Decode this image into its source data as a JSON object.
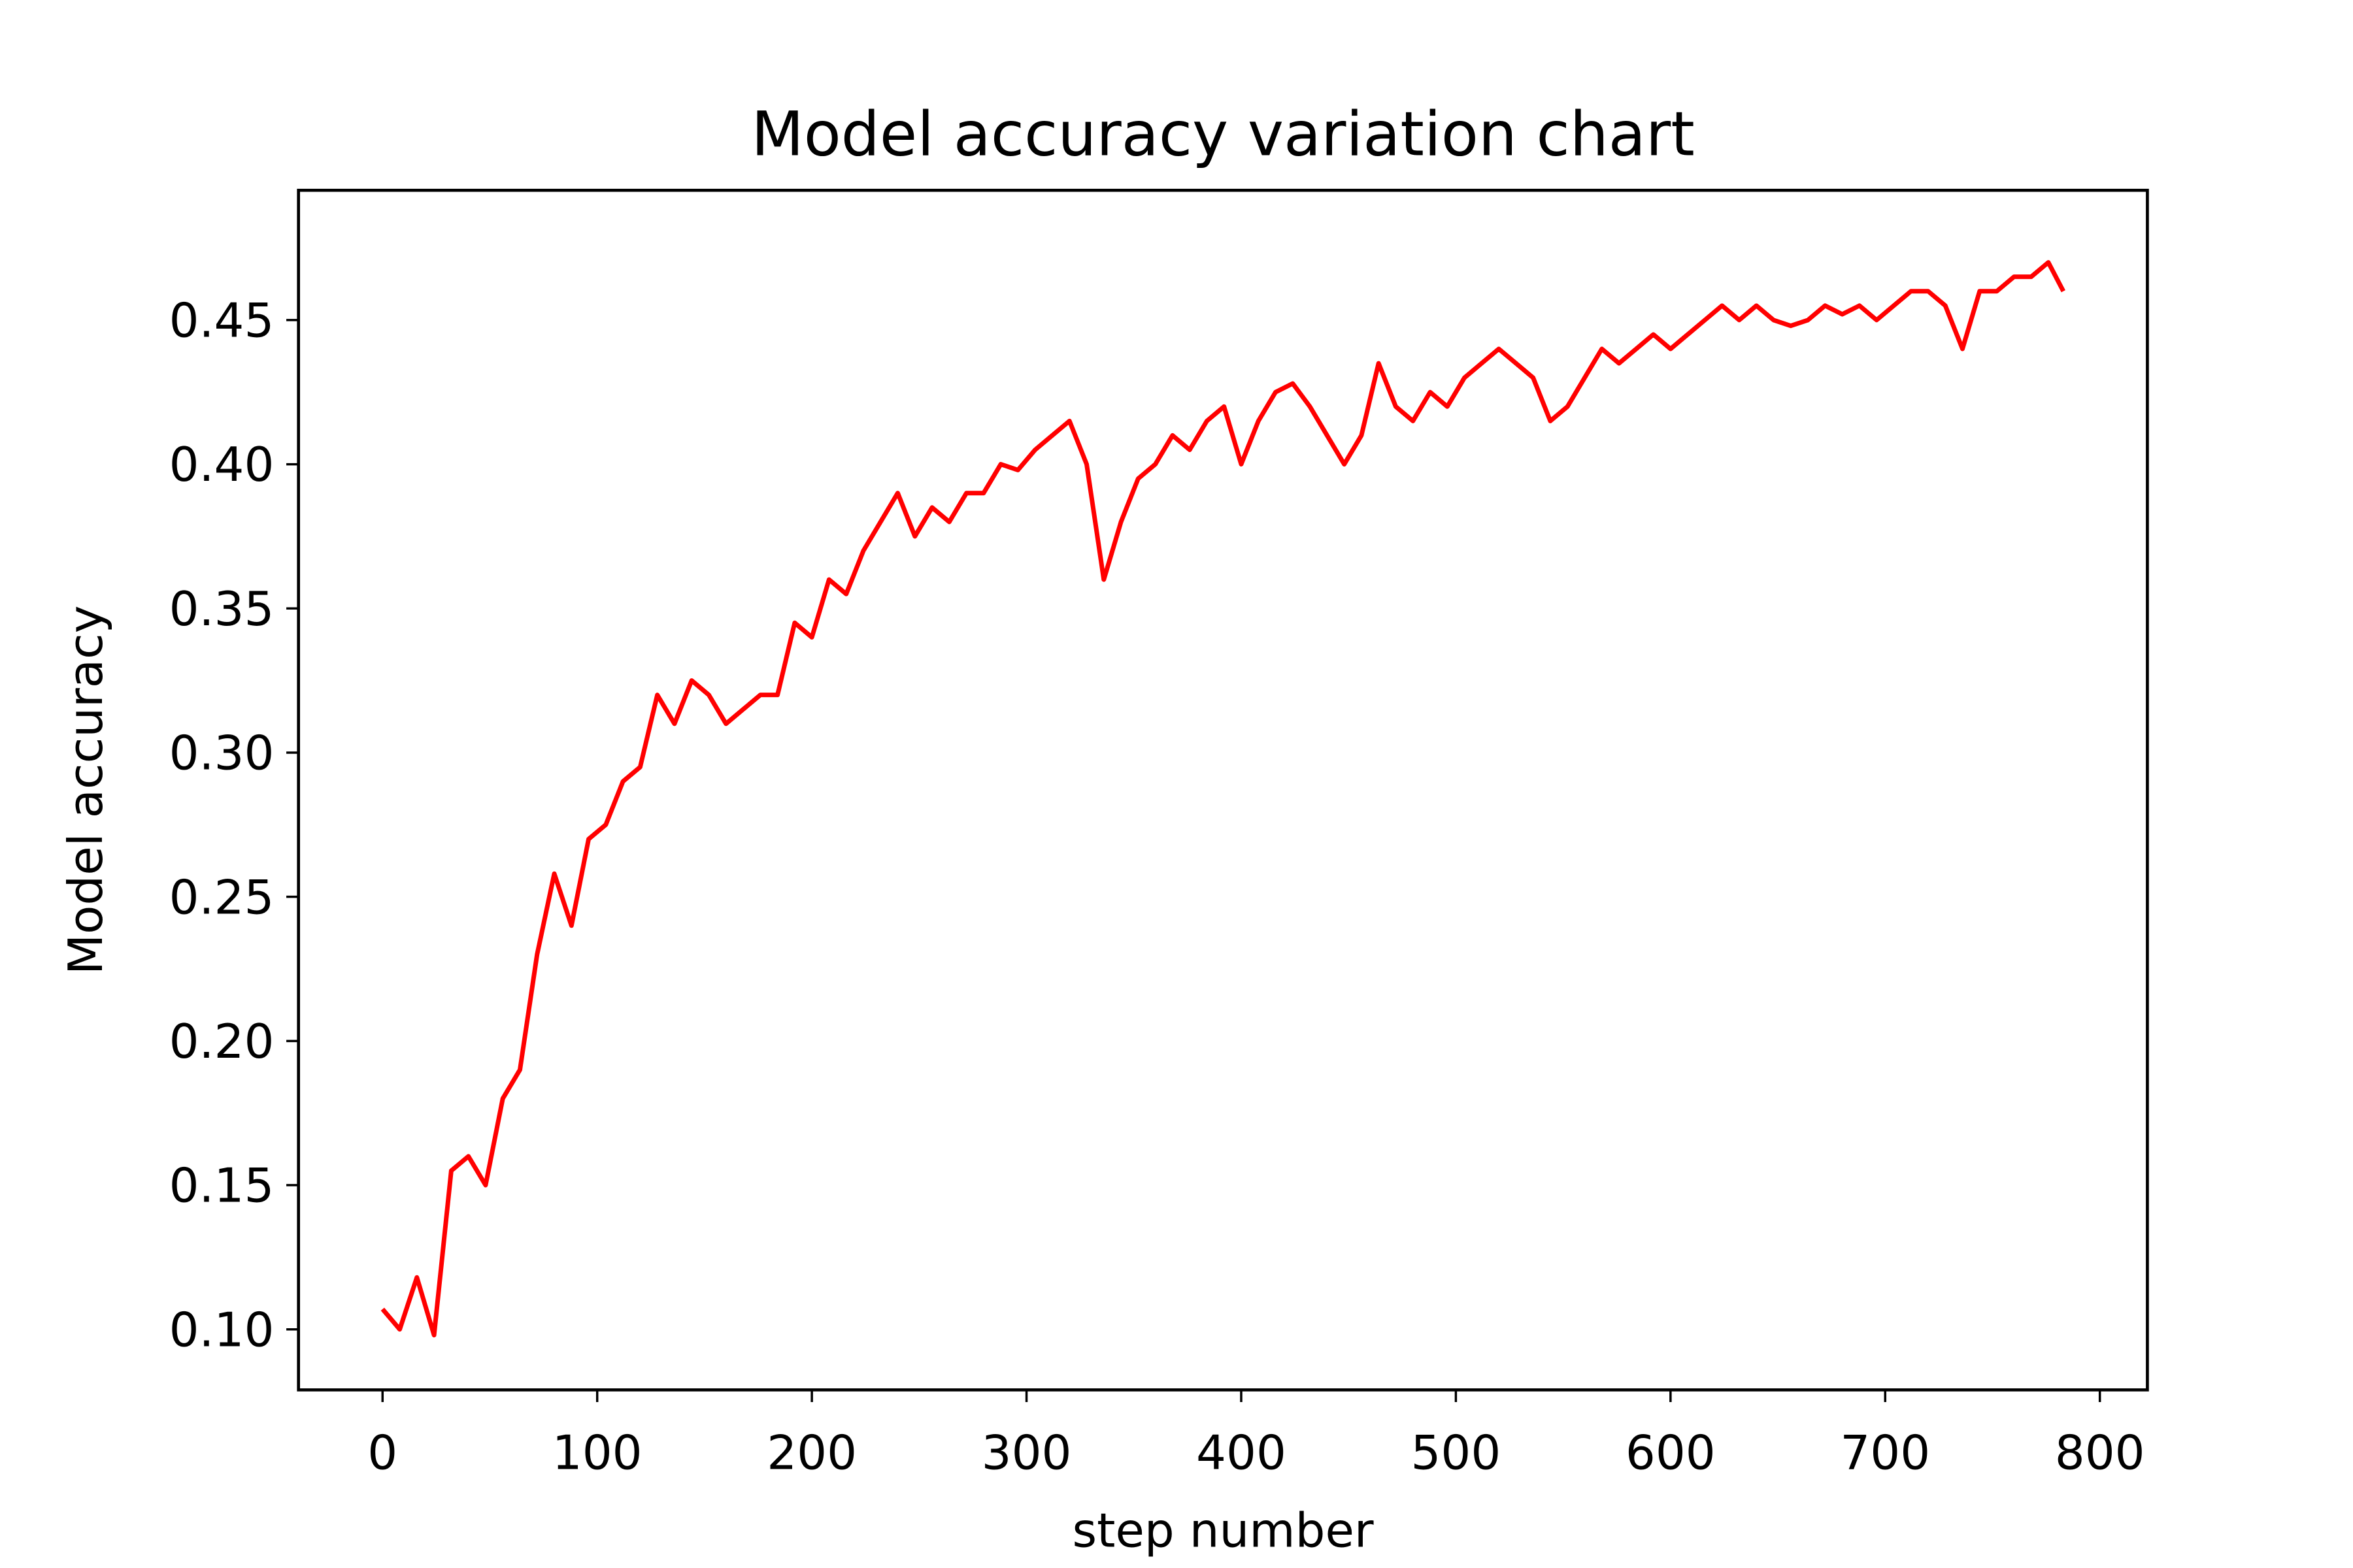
{
  "chart_data": {
    "type": "line",
    "title": "Model accuracy variation chart",
    "x_label": "step number",
    "y_label": "Model accuracy",
    "x": [
      0,
      8,
      16,
      24,
      32,
      40,
      48,
      56,
      64,
      72,
      80,
      88,
      96,
      104,
      112,
      120,
      128,
      136,
      144,
      152,
      160,
      168,
      176,
      184,
      192,
      200,
      208,
      216,
      224,
      232,
      240,
      248,
      256,
      264,
      272,
      280,
      288,
      296,
      304,
      312,
      320,
      328,
      336,
      344,
      352,
      360,
      368,
      376,
      384,
      392,
      400,
      408,
      416,
      424,
      432,
      440,
      448,
      456,
      464,
      472,
      480,
      488,
      496,
      504,
      512,
      520,
      528,
      536,
      544,
      552,
      560,
      568,
      576,
      584,
      592,
      600,
      608,
      616,
      624,
      632,
      640,
      648,
      656,
      664,
      672,
      680,
      688,
      696,
      704,
      712,
      720,
      728,
      736,
      744,
      752,
      760,
      768,
      776,
      783
    ],
    "series": [
      {
        "name": "accuracy",
        "color": "#ff0000",
        "values": [
          0.107,
          0.1,
          0.118,
          0.098,
          0.155,
          0.16,
          0.15,
          0.18,
          0.19,
          0.23,
          0.258,
          0.24,
          0.27,
          0.275,
          0.29,
          0.295,
          0.32,
          0.31,
          0.325,
          0.32,
          0.31,
          0.315,
          0.32,
          0.32,
          0.345,
          0.34,
          0.36,
          0.355,
          0.37,
          0.38,
          0.39,
          0.375,
          0.385,
          0.38,
          0.39,
          0.39,
          0.4,
          0.398,
          0.405,
          0.41,
          0.415,
          0.4,
          0.36,
          0.38,
          0.395,
          0.4,
          0.41,
          0.405,
          0.415,
          0.42,
          0.4,
          0.415,
          0.425,
          0.428,
          0.42,
          0.41,
          0.4,
          0.41,
          0.435,
          0.42,
          0.415,
          0.425,
          0.42,
          0.43,
          0.435,
          0.44,
          0.435,
          0.43,
          0.415,
          0.42,
          0.43,
          0.44,
          0.435,
          0.44,
          0.445,
          0.44,
          0.445,
          0.45,
          0.455,
          0.45,
          0.455,
          0.45,
          0.448,
          0.45,
          0.455,
          0.452,
          0.455,
          0.45,
          0.455,
          0.46,
          0.46,
          0.455,
          0.44,
          0.46,
          0.46,
          0.465,
          0.465,
          0.47,
          0.46
        ]
      }
    ],
    "xlim": [
      -39.15,
      822.15
    ],
    "ylim": [
      0.079,
      0.495
    ],
    "xticks": [
      0,
      100,
      200,
      300,
      400,
      500,
      600,
      700,
      800
    ],
    "yticks": [
      {
        "value": 0.1,
        "label": "0.10"
      },
      {
        "value": 0.15,
        "label": "0.15"
      },
      {
        "value": 0.2,
        "label": "0.20"
      },
      {
        "value": 0.25,
        "label": "0.25"
      },
      {
        "value": 0.3,
        "label": "0.30"
      },
      {
        "value": 0.35,
        "label": "0.35"
      },
      {
        "value": 0.4,
        "label": "0.40"
      },
      {
        "value": 0.45,
        "label": "0.45"
      }
    ],
    "grid": false
  }
}
